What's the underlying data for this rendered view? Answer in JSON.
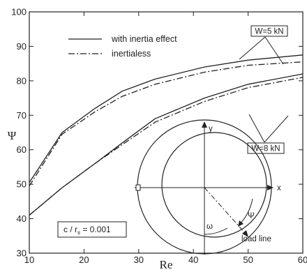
{
  "chart_data": {
    "type": "line",
    "xlabel": "Re",
    "ylabel": "Ψ",
    "xlim": [
      10,
      60
    ],
    "ylim": [
      30,
      100
    ],
    "xticks": [
      10,
      20,
      30,
      40,
      50,
      60
    ],
    "yticks": [
      30,
      40,
      50,
      60,
      70,
      80,
      90,
      100
    ],
    "grid": false,
    "legend_position": "top-left",
    "legend": [
      {
        "label": "with inertia effect",
        "style": "solid"
      },
      {
        "label": "inertialess",
        "style": "dash-dot"
      }
    ],
    "series": [
      {
        "name": "with inertia effect",
        "group": "W=5 kN",
        "style": "solid",
        "x": [
          10,
          16,
          22,
          27,
          33,
          42,
          50,
          60
        ],
        "y": [
          50.5,
          65,
          72,
          77,
          80.5,
          84,
          86,
          87.5
        ]
      },
      {
        "name": "inertialess",
        "group": "W=5 kN",
        "style": "dash-dot",
        "x": [
          10,
          16,
          22,
          27,
          33,
          42,
          50,
          60
        ],
        "y": [
          49.5,
          64.5,
          71,
          75.5,
          79,
          82.5,
          84.5,
          85.5
        ]
      },
      {
        "name": "with inertia effect",
        "group": "W=8 kN",
        "style": "solid",
        "x": [
          10,
          16,
          22,
          27,
          33,
          42,
          50,
          60
        ],
        "y": [
          41,
          49,
          56,
          62,
          69,
          75,
          79,
          82
        ]
      },
      {
        "name": "inertialess",
        "group": "W=8 kN",
        "style": "dash-dot",
        "x": [
          10,
          16,
          22,
          27,
          33,
          42,
          50,
          60
        ],
        "y": [
          41,
          49,
          56,
          61.5,
          68,
          74,
          78,
          81
        ]
      }
    ],
    "annotations": {
      "w5": "W=5 kN",
      "w8": "W=8 kN",
      "clearance": "c / r",
      "clearance_sub": "s",
      "clearance_value": " = 0.001"
    },
    "inset": {
      "x_axis": "x",
      "y_axis": "y",
      "omega": "ω",
      "psi": "Ψ",
      "load_line": "load line"
    }
  }
}
